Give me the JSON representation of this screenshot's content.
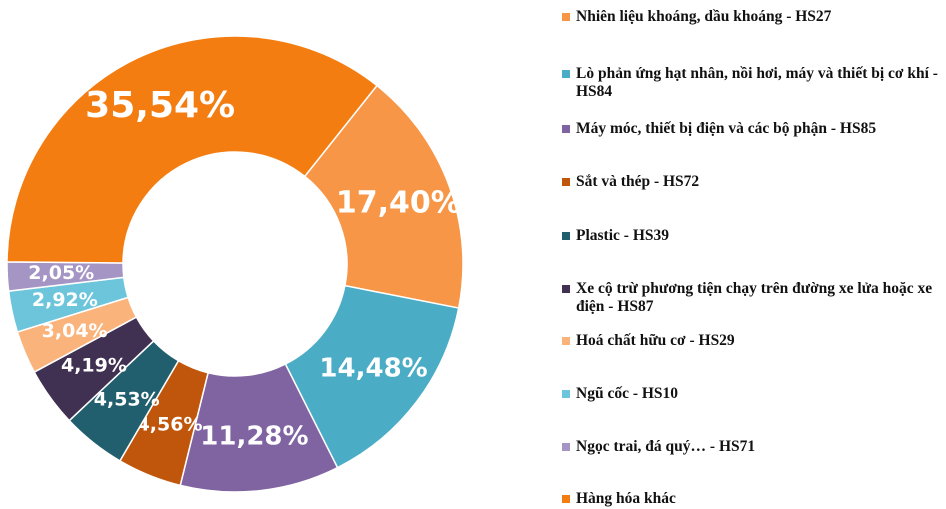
{
  "chart_data": {
    "type": "donut",
    "categories": [
      "Nhiên liệu khoáng, dầu khoáng - HS27",
      "Lò phản ứng hạt nhân, nồi hơi, máy và thiết bị cơ khí - HS84",
      "Máy móc, thiết bị điện và các bộ phận - HS85",
      "Sắt và thép - HS72",
      "Plastic - HS39",
      "Xe cộ trừ phương tiện chạy trên đường xe lửa hoặc xe điện - HS87",
      "Hoá chất hữu cơ - HS29",
      "Ngũ cốc - HS10",
      "Ngọc trai, đá quý… - HS71",
      "Hàng hóa khác"
    ],
    "values": [
      17.4,
      14.48,
      11.28,
      4.56,
      4.53,
      4.19,
      3.04,
      2.92,
      2.05,
      35.54
    ],
    "value_labels": [
      "17,40%",
      "14,48%",
      "11,28%",
      "4,56%",
      "4,53%",
      "4,19%",
      "3,04%",
      "2,92%",
      "2,05%",
      "35,54%"
    ],
    "colors": [
      "#f79646",
      "#4bacc6",
      "#8064a2",
      "#c0560b",
      "#215f6e",
      "#403152",
      "#fab37a",
      "#6cc5db",
      "#a495c4",
      "#f47d11"
    ],
    "legend": "right"
  }
}
